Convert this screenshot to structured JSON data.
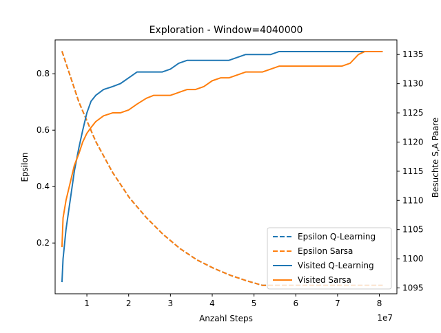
{
  "chart_data": {
    "type": "line",
    "title": "Exploration - Window=4040000",
    "xlabel": "Anzahl Steps",
    "ylabel_left": "Epsilon",
    "ylabel_right": "Besuchte S,A Paare",
    "x_offset_label": "1e7",
    "xlim": [
      2400000,
      84200000
    ],
    "ylim_left": [
      0.02,
      0.92
    ],
    "ylim_right": [
      1094.0,
      1137.5
    ],
    "x_ticks": [
      10000000,
      20000000,
      30000000,
      40000000,
      50000000,
      60000000,
      70000000,
      80000000
    ],
    "x_tick_labels": [
      "1",
      "2",
      "3",
      "4",
      "5",
      "6",
      "7",
      "8"
    ],
    "y_left_ticks": [
      0.2,
      0.4,
      0.6,
      0.8
    ],
    "y_left_tick_labels": [
      "0.2",
      "0.4",
      "0.6",
      "0.8"
    ],
    "y_right_ticks": [
      1095,
      1100,
      1105,
      1110,
      1115,
      1120,
      1125,
      1130,
      1135
    ],
    "y_right_tick_labels": [
      "1095",
      "1100",
      "1105",
      "1110",
      "1115",
      "1120",
      "1125",
      "1130",
      "1135"
    ],
    "grid": false,
    "legend_position": "lower-right",
    "series": [
      {
        "name": "Epsilon Q-Learning",
        "axis": "left",
        "style": "dashed",
        "color": "#1f77b4",
        "x": [
          4040000,
          8080000,
          12120000,
          16160000,
          20200000,
          24240000,
          28280000,
          32320000,
          36360000,
          40400000,
          44440000,
          48480000,
          52000000,
          56000000,
          60000000,
          64000000,
          68000000,
          72000000,
          76000000,
          80800000
        ],
        "y": [
          0.88,
          0.7,
          0.56,
          0.45,
          0.36,
          0.29,
          0.23,
          0.18,
          0.14,
          0.11,
          0.085,
          0.065,
          0.05,
          0.05,
          0.05,
          0.05,
          0.05,
          0.05,
          0.05,
          0.05
        ]
      },
      {
        "name": "Epsilon Sarsa",
        "axis": "left",
        "style": "dashed",
        "color": "#ff7f0e",
        "x": [
          4040000,
          8080000,
          12120000,
          16160000,
          20200000,
          24240000,
          28280000,
          32320000,
          36360000,
          40400000,
          44440000,
          48480000,
          52000000,
          56000000,
          60000000,
          64000000,
          68000000,
          72000000,
          76000000,
          80800000
        ],
        "y": [
          0.88,
          0.7,
          0.56,
          0.45,
          0.36,
          0.29,
          0.23,
          0.18,
          0.14,
          0.11,
          0.085,
          0.065,
          0.05,
          0.05,
          0.05,
          0.05,
          0.05,
          0.05,
          0.05,
          0.05
        ]
      },
      {
        "name": "Visited Q-Learning",
        "axis": "right",
        "style": "solid",
        "color": "#1f77b4",
        "x": [
          4040000,
          4300000,
          5000000,
          6000000,
          7000000,
          8080000,
          9000000,
          10000000,
          11000000,
          12120000,
          14000000,
          16160000,
          18000000,
          20000000,
          22000000,
          24240000,
          26000000,
          28000000,
          30000000,
          32000000,
          34000000,
          36000000,
          38000000,
          40000000,
          42000000,
          44000000,
          46000000,
          48000000,
          50000000,
          52000000,
          54000000,
          56000000,
          60000000,
          64000000,
          68000000,
          72000000,
          76000000,
          80800000
        ],
        "y": [
          1096,
          1100,
          1105,
          1110,
          1115,
          1119,
          1122,
          1125,
          1127,
          1128,
          1129,
          1129.5,
          1130,
          1131,
          1132,
          1132,
          1132,
          1132,
          1132.5,
          1133.5,
          1134,
          1134,
          1134,
          1134,
          1134,
          1134,
          1134.5,
          1135,
          1135,
          1135,
          1135,
          1135.5,
          1135.5,
          1135.5,
          1135.5,
          1135.5,
          1135.5,
          1135.5
        ]
      },
      {
        "name": "Visited Sarsa",
        "axis": "right",
        "style": "solid",
        "color": "#ff7f0e",
        "x": [
          4040000,
          4300000,
          5000000,
          6000000,
          7000000,
          8080000,
          9000000,
          10000000,
          11000000,
          12120000,
          14000000,
          16160000,
          18000000,
          20000000,
          22000000,
          24240000,
          26000000,
          28000000,
          30000000,
          32000000,
          34000000,
          36000000,
          38000000,
          40000000,
          42000000,
          44000000,
          46000000,
          48000000,
          50000000,
          52000000,
          54000000,
          56000000,
          60000000,
          64000000,
          68000000,
          71000000,
          73000000,
          75000000,
          76500000,
          80800000
        ],
        "y": [
          1102,
          1107,
          1110,
          1113,
          1116,
          1118,
          1120,
          1121.5,
          1122.5,
          1123.5,
          1124.5,
          1125,
          1125,
          1125.5,
          1126.5,
          1127.5,
          1128,
          1128,
          1128,
          1128.5,
          1129,
          1129,
          1129.5,
          1130.5,
          1131,
          1131,
          1131.5,
          1132,
          1132,
          1132,
          1132.5,
          1133,
          1133,
          1133,
          1133,
          1133,
          1133.5,
          1135,
          1135.5,
          1135.5
        ]
      }
    ]
  }
}
